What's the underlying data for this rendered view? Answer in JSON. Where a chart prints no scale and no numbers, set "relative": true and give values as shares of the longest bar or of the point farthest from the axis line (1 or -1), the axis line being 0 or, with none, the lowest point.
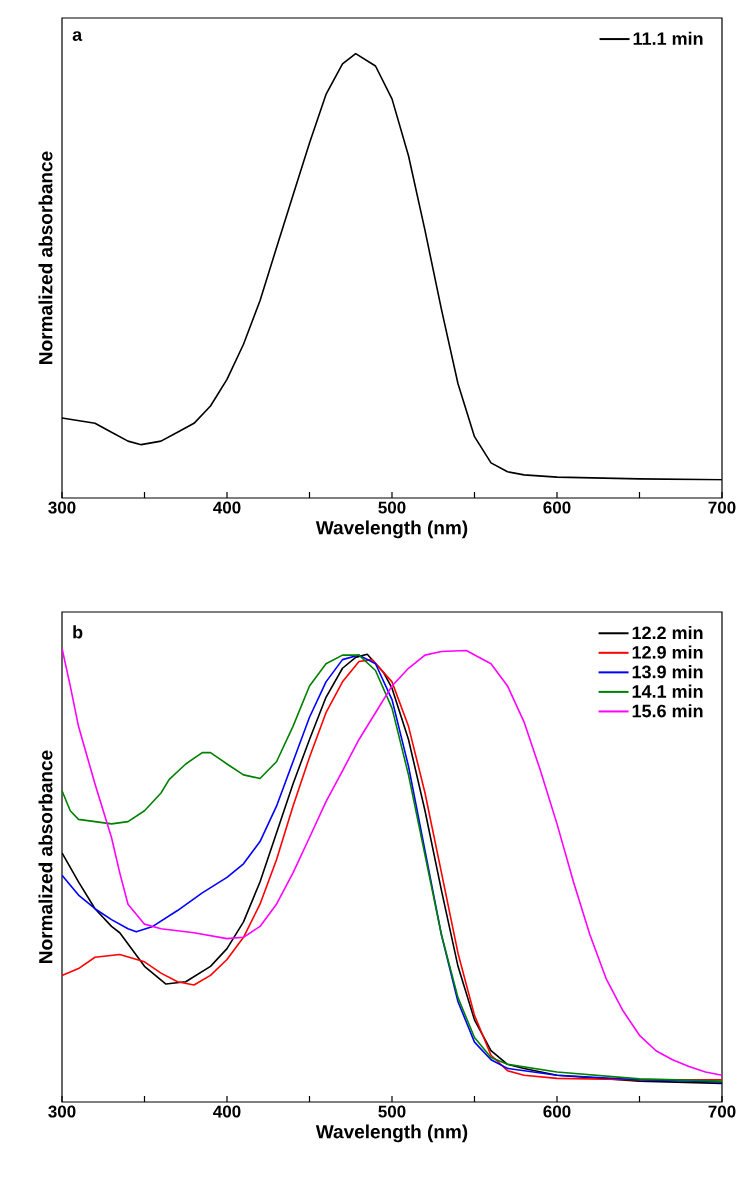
{
  "chart_data": [
    {
      "type": "line",
      "relative": true,
      "xlabel": "Wavelength (nm)",
      "ylabel": "Normalized absorbance",
      "annotations": [
        "a"
      ],
      "xlim": [
        300,
        700
      ],
      "xticks": [
        300,
        {
          "value": 350,
          "label": null
        },
        400,
        {
          "value": 450,
          "label": null
        },
        500,
        {
          "value": 550,
          "label": null
        },
        600,
        {
          "value": 650,
          "label": null
        },
        700
      ],
      "legend": "top right",
      "series": [
        {
          "name": "11.1 min",
          "color": "#000000",
          "x": [
            300,
            320,
            330,
            340,
            348,
            360,
            370,
            380,
            390,
            400,
            410,
            420,
            430,
            440,
            450,
            460,
            470,
            478,
            490,
            500,
            510,
            520,
            530,
            540,
            550,
            560,
            570,
            580,
            600,
            650,
            700
          ],
          "values": [
            0.18,
            0.168,
            0.148,
            0.128,
            0.12,
            0.128,
            0.148,
            0.168,
            0.207,
            0.267,
            0.346,
            0.444,
            0.563,
            0.681,
            0.799,
            0.908,
            0.977,
            1.0,
            0.972,
            0.898,
            0.77,
            0.602,
            0.424,
            0.257,
            0.138,
            0.079,
            0.059,
            0.052,
            0.047,
            0.043,
            0.041
          ]
        }
      ]
    },
    {
      "type": "line",
      "relative": true,
      "xlabel": "Wavelength (nm)",
      "ylabel": "Normalized absorbance",
      "annotations": [
        "b"
      ],
      "xlim": [
        300,
        700
      ],
      "xticks": [
        300,
        {
          "value": 350,
          "label": null
        },
        400,
        {
          "value": 450,
          "label": null
        },
        500,
        {
          "value": 550,
          "label": null
        },
        600,
        {
          "value": 650,
          "label": null
        },
        700
      ],
      "legend": "top right",
      "series": [
        {
          "name": "12.2 min",
          "color": "#000000",
          "x": [
            300,
            310,
            320,
            330,
            335,
            350,
            363,
            375,
            390,
            400,
            410,
            420,
            430,
            440,
            450,
            460,
            470,
            478,
            485,
            495,
            500,
            510,
            520,
            530,
            540,
            550,
            560,
            570,
            580,
            600,
            650,
            700
          ],
          "values": [
            0.549,
            0.485,
            0.426,
            0.387,
            0.373,
            0.299,
            0.26,
            0.265,
            0.299,
            0.338,
            0.397,
            0.485,
            0.593,
            0.701,
            0.799,
            0.892,
            0.956,
            0.98,
            0.987,
            0.946,
            0.912,
            0.799,
            0.642,
            0.466,
            0.299,
            0.181,
            0.113,
            0.083,
            0.074,
            0.059,
            0.046,
            0.041
          ]
        },
        {
          "name": "12.9 min",
          "color": "#ff0000",
          "x": [
            300,
            310,
            320,
            335,
            350,
            360,
            370,
            380,
            390,
            400,
            410,
            420,
            430,
            440,
            450,
            460,
            470,
            480,
            488,
            500,
            510,
            520,
            530,
            540,
            550,
            560,
            570,
            580,
            600,
            650,
            700
          ],
          "values": [
            0.279,
            0.294,
            0.319,
            0.325,
            0.309,
            0.284,
            0.265,
            0.258,
            0.279,
            0.314,
            0.363,
            0.436,
            0.534,
            0.652,
            0.76,
            0.858,
            0.926,
            0.971,
            0.975,
            0.926,
            0.828,
            0.681,
            0.505,
            0.328,
            0.191,
            0.103,
            0.069,
            0.059,
            0.052,
            0.049,
            0.049
          ]
        },
        {
          "name": "13.9 min",
          "color": "#0000ff",
          "x": [
            300,
            310,
            320,
            330,
            340,
            345,
            355,
            370,
            385,
            400,
            410,
            420,
            430,
            440,
            450,
            460,
            470,
            480,
            490,
            500,
            510,
            520,
            530,
            540,
            550,
            560,
            570,
            600,
            650,
            700
          ],
          "values": [
            0.5,
            0.456,
            0.426,
            0.402,
            0.382,
            0.375,
            0.387,
            0.422,
            0.461,
            0.495,
            0.525,
            0.574,
            0.652,
            0.75,
            0.848,
            0.926,
            0.975,
            0.985,
            0.966,
            0.887,
            0.74,
            0.554,
            0.368,
            0.221,
            0.132,
            0.093,
            0.074,
            0.059,
            0.049,
            0.044
          ]
        },
        {
          "name": "14.1 min",
          "color": "#008000",
          "x": [
            300,
            305,
            310,
            320,
            330,
            340,
            350,
            360,
            365,
            375,
            385,
            390,
            400,
            410,
            420,
            430,
            440,
            450,
            460,
            470,
            480,
            490,
            500,
            510,
            520,
            530,
            540,
            550,
            560,
            570,
            600,
            650,
            700
          ],
          "values": [
            0.686,
            0.642,
            0.623,
            0.618,
            0.613,
            0.618,
            0.642,
            0.681,
            0.711,
            0.745,
            0.77,
            0.77,
            0.745,
            0.721,
            0.713,
            0.75,
            0.828,
            0.917,
            0.966,
            0.985,
            0.985,
            0.951,
            0.868,
            0.721,
            0.544,
            0.368,
            0.23,
            0.142,
            0.098,
            0.083,
            0.066,
            0.051,
            0.046
          ]
        },
        {
          "name": "15.6 min",
          "color": "#ff00ff",
          "x": [
            300,
            305,
            310,
            320,
            330,
            335,
            340,
            350,
            360,
            380,
            400,
            410,
            420,
            430,
            440,
            450,
            460,
            470,
            480,
            490,
            500,
            510,
            520,
            530,
            545,
            560,
            570,
            580,
            590,
            600,
            610,
            620,
            630,
            640,
            650,
            660,
            670,
            680,
            690,
            700
          ],
          "values": [
            1.0,
            0.917,
            0.828,
            0.701,
            0.583,
            0.505,
            0.436,
            0.392,
            0.382,
            0.373,
            0.36,
            0.363,
            0.387,
            0.436,
            0.505,
            0.583,
            0.662,
            0.73,
            0.799,
            0.858,
            0.917,
            0.956,
            0.985,
            0.993,
            0.995,
            0.966,
            0.917,
            0.838,
            0.73,
            0.613,
            0.485,
            0.368,
            0.27,
            0.201,
            0.147,
            0.113,
            0.093,
            0.078,
            0.066,
            0.059
          ]
        }
      ]
    }
  ]
}
